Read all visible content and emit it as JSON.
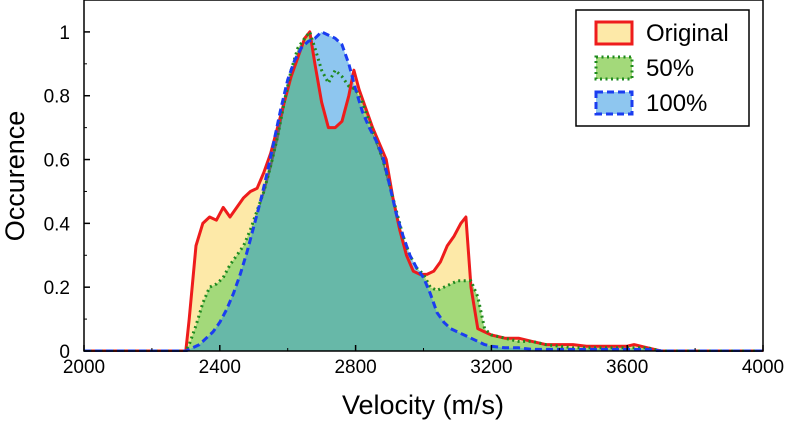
{
  "chart_data": {
    "type": "area",
    "xlabel": "Velocity (m/s)",
    "ylabel": "Occurence",
    "xlim": [
      2000,
      4000
    ],
    "ylim": [
      0,
      1.1
    ],
    "xticks": [
      "2000",
      "2400",
      "2800",
      "3200",
      "3600",
      "4000"
    ],
    "yticks": [
      "0",
      "0.2",
      "0.4",
      "0.6",
      "0.8",
      "1"
    ],
    "grid": false,
    "legend_position": "top-right",
    "series": [
      {
        "name": "Original",
        "line_color": "#ee1c1c",
        "fill_color": "#fde9a8",
        "line_style": "solid",
        "x": [
          2000,
          2300,
          2310,
          2330,
          2350,
          2370,
          2390,
          2410,
          2430,
          2450,
          2470,
          2490,
          2510,
          2530,
          2550,
          2570,
          2590,
          2610,
          2630,
          2650,
          2665,
          2680,
          2700,
          2720,
          2740,
          2760,
          2780,
          2795,
          2810,
          2830,
          2850,
          2870,
          2890,
          2910,
          2930,
          2950,
          2970,
          2990,
          3010,
          3030,
          3050,
          3070,
          3090,
          3110,
          3125,
          3140,
          3160,
          3180,
          3200,
          3240,
          3280,
          3320,
          3360,
          3400,
          3440,
          3480,
          3520,
          3560,
          3600,
          3620,
          3640,
          3660,
          3700,
          4000
        ],
        "y": [
          0,
          0,
          0.1,
          0.33,
          0.4,
          0.42,
          0.41,
          0.45,
          0.42,
          0.45,
          0.48,
          0.5,
          0.51,
          0.56,
          0.62,
          0.7,
          0.78,
          0.86,
          0.92,
          0.98,
          1.0,
          0.9,
          0.78,
          0.7,
          0.7,
          0.72,
          0.8,
          0.88,
          0.82,
          0.76,
          0.7,
          0.65,
          0.6,
          0.48,
          0.38,
          0.3,
          0.25,
          0.24,
          0.24,
          0.25,
          0.28,
          0.33,
          0.36,
          0.4,
          0.42,
          0.2,
          0.07,
          0.06,
          0.05,
          0.04,
          0.04,
          0.03,
          0.02,
          0.02,
          0.02,
          0.015,
          0.015,
          0.015,
          0.015,
          0.02,
          0.015,
          0.01,
          0,
          0
        ]
      },
      {
        "name": "50%",
        "line_color": "#1f8a1f",
        "fill_color": "#a3d97a",
        "line_style": "dotted",
        "x": [
          2000,
          2300,
          2310,
          2330,
          2350,
          2370,
          2390,
          2410,
          2430,
          2450,
          2470,
          2490,
          2510,
          2530,
          2550,
          2570,
          2590,
          2610,
          2630,
          2650,
          2665,
          2680,
          2700,
          2720,
          2740,
          2760,
          2780,
          2800,
          2820,
          2840,
          2860,
          2880,
          2900,
          2920,
          2940,
          2960,
          2980,
          3000,
          3020,
          3040,
          3060,
          3080,
          3100,
          3120,
          3140,
          3160,
          3180,
          3200,
          3240,
          3280,
          3320,
          3360,
          3400,
          3440,
          3480,
          3520,
          3560,
          3600,
          3640,
          3660,
          3700,
          4000
        ],
        "y": [
          0,
          0,
          0.02,
          0.08,
          0.15,
          0.2,
          0.21,
          0.23,
          0.27,
          0.3,
          0.33,
          0.38,
          0.44,
          0.5,
          0.58,
          0.67,
          0.78,
          0.88,
          0.95,
          0.98,
          1.0,
          0.95,
          0.88,
          0.84,
          0.88,
          0.86,
          0.83,
          0.82,
          0.78,
          0.72,
          0.66,
          0.6,
          0.52,
          0.44,
          0.36,
          0.3,
          0.26,
          0.24,
          0.2,
          0.19,
          0.2,
          0.21,
          0.22,
          0.22,
          0.22,
          0.17,
          0.07,
          0.05,
          0.04,
          0.03,
          0.03,
          0.02,
          0.015,
          0.01,
          0.01,
          0.01,
          0.01,
          0.01,
          0.01,
          0.01,
          0,
          0
        ]
      },
      {
        "name": "100%",
        "line_color": "#1b3df0",
        "fill_color": "#8ec6ef",
        "line_style": "dashed",
        "x": [
          2000,
          2300,
          2320,
          2340,
          2360,
          2380,
          2400,
          2420,
          2440,
          2460,
          2480,
          2500,
          2520,
          2540,
          2560,
          2580,
          2600,
          2620,
          2640,
          2660,
          2680,
          2700,
          2720,
          2740,
          2760,
          2780,
          2800,
          2820,
          2840,
          2860,
          2880,
          2900,
          2920,
          2940,
          2960,
          2980,
          3000,
          3020,
          3040,
          3060,
          3080,
          3100,
          3120,
          3140,
          3160,
          3180,
          3200,
          3240,
          3280,
          3320,
          3360,
          3400,
          3440,
          3480,
          3520,
          3560,
          3600,
          3640,
          3660,
          3700,
          4000
        ],
        "y": [
          0,
          0,
          0.01,
          0.02,
          0.04,
          0.06,
          0.09,
          0.13,
          0.18,
          0.24,
          0.31,
          0.39,
          0.47,
          0.56,
          0.66,
          0.76,
          0.85,
          0.91,
          0.95,
          0.97,
          0.98,
          1.0,
          0.99,
          0.98,
          0.96,
          0.9,
          0.82,
          0.75,
          0.7,
          0.66,
          0.61,
          0.52,
          0.43,
          0.36,
          0.3,
          0.26,
          0.23,
          0.18,
          0.12,
          0.09,
          0.07,
          0.06,
          0.05,
          0.04,
          0.03,
          0.02,
          0.015,
          0.01,
          0.01,
          0.005,
          0.005,
          0.005,
          0.005,
          0.005,
          0.005,
          0.005,
          0.005,
          0.005,
          0.005,
          0,
          0
        ]
      }
    ],
    "overlap_fill_color": "#67b8a8",
    "overlap_line_color": "#666666"
  }
}
